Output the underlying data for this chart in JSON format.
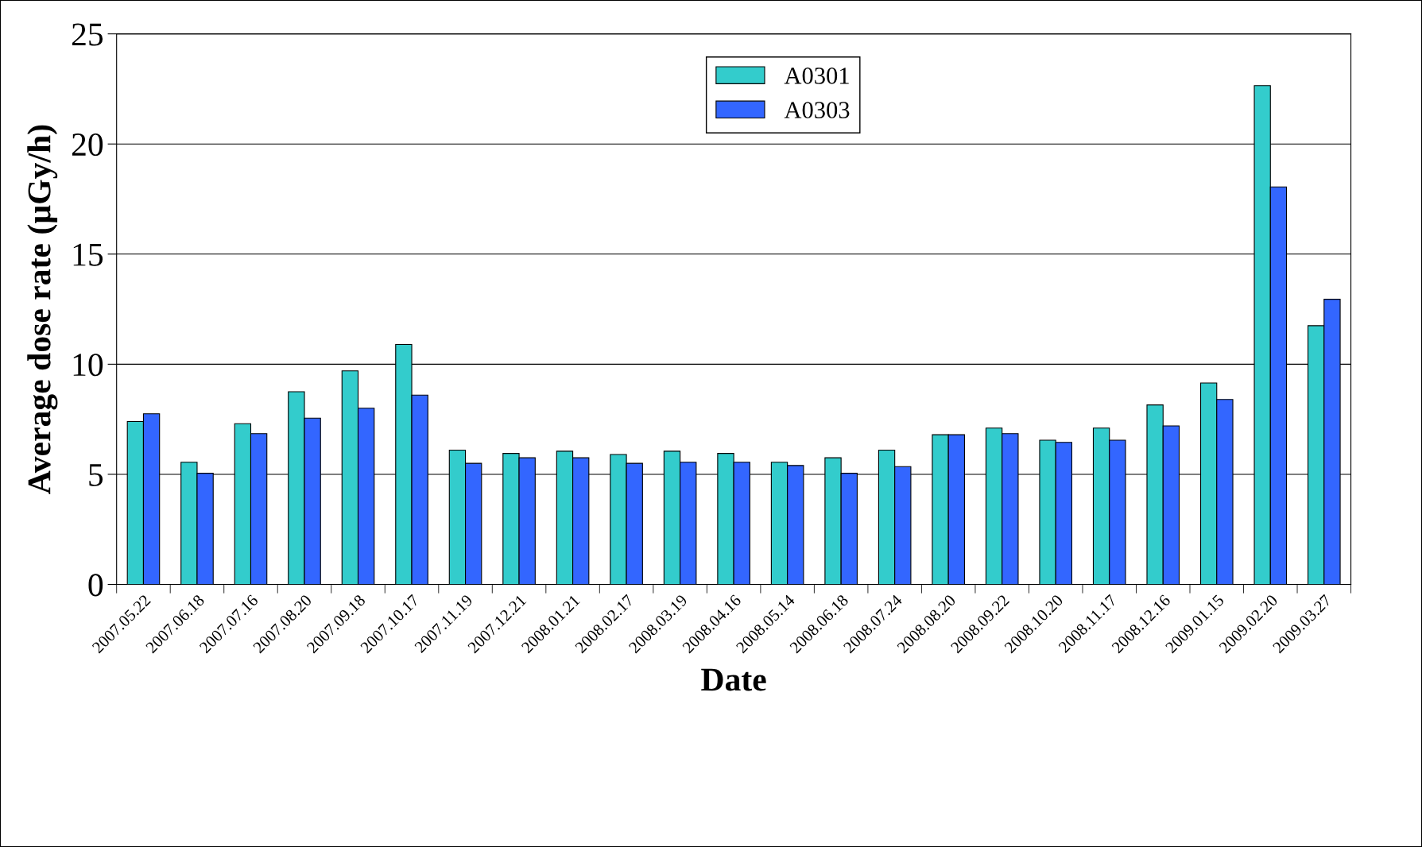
{
  "chart_data": {
    "type": "bar",
    "xlabel": "Date",
    "ylabel": "Average dose rate (µGy/h)",
    "categories": [
      "2007.05.22",
      "2007.06.18",
      "2007.07.16",
      "2007.08.20",
      "2007.09.18",
      "2007.10.17",
      "2007.11.19",
      "2007.12.21",
      "2008.01.21",
      "2008.02.17",
      "2008.03.19",
      "2008.04.16",
      "2008.05.14",
      "2008.06.18",
      "2008.07.24",
      "2008.08.20",
      "2008.09.22",
      "2008.10.20",
      "2008.11.17",
      "2008.12.16",
      "2009.01.15",
      "2009.02.20",
      "2009.03.27"
    ],
    "series": [
      {
        "name": "A0301",
        "color": "#33cccc",
        "values": [
          7.4,
          5.55,
          7.3,
          8.75,
          9.7,
          10.9,
          6.1,
          5.95,
          6.05,
          5.9,
          6.05,
          5.95,
          5.55,
          5.75,
          6.1,
          6.8,
          7.1,
          6.55,
          7.1,
          8.15,
          9.15,
          22.65,
          11.75
        ]
      },
      {
        "name": "A0303",
        "color": "#3366ff",
        "values": [
          7.75,
          5.05,
          6.85,
          7.55,
          8.0,
          8.6,
          5.5,
          5.75,
          5.75,
          5.5,
          5.55,
          5.55,
          5.4,
          5.05,
          5.35,
          6.8,
          6.85,
          6.45,
          6.55,
          7.2,
          8.4,
          18.05,
          12.95
        ]
      }
    ],
    "ylim": [
      0,
      25
    ],
    "yticks": [
      0,
      5,
      10,
      15,
      20,
      25
    ],
    "grid": "y",
    "legend": "top center"
  }
}
